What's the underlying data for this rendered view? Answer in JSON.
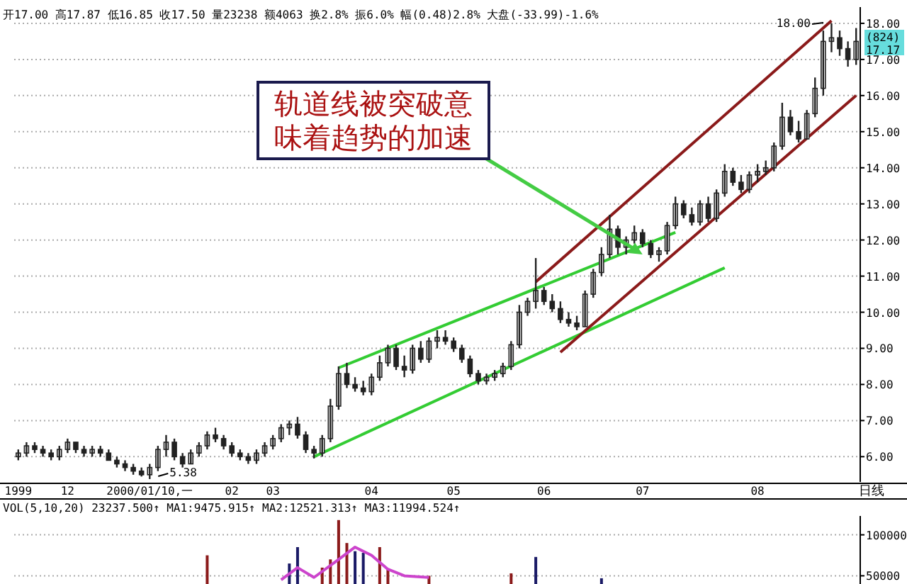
{
  "chart_data": [
    {
      "type": "candlestick",
      "title": "开17.00 高17.87 低16.85 收17.50 量23238 额4063 换2.8% 振6.0% 幅(0.48)2.8% 大盘(-33.99)-1.6%",
      "color": "#222222",
      "categories": [
        "1999",
        null,
        null,
        null,
        null,
        null,
        "12",
        null,
        null,
        null,
        null,
        null,
        null,
        null,
        null,
        null,
        "2000/01/10,一",
        null,
        null,
        null,
        null,
        null,
        null,
        null,
        null,
        null,
        "02",
        null,
        null,
        null,
        null,
        "03",
        null,
        null,
        null,
        null,
        null,
        null,
        null,
        null,
        null,
        null,
        null,
        "04",
        null,
        null,
        null,
        null,
        null,
        null,
        null,
        null,
        null,
        "05",
        null,
        null,
        null,
        null,
        null,
        null,
        null,
        null,
        null,
        null,
        "06",
        null,
        null,
        null,
        null,
        null,
        null,
        null,
        null,
        null,
        null,
        null,
        "07",
        null,
        null,
        null,
        null,
        null,
        null,
        null,
        null,
        null,
        null,
        null,
        null,
        null,
        "08",
        null,
        null,
        null,
        null,
        null,
        null,
        null,
        null,
        null,
        null,
        null,
        null
      ],
      "ohlc": [
        [
          6.0,
          6.2,
          5.9,
          6.1
        ],
        [
          6.1,
          6.4,
          6.0,
          6.3
        ],
        [
          6.3,
          6.4,
          6.1,
          6.2
        ],
        [
          6.2,
          6.3,
          6.0,
          6.1
        ],
        [
          6.1,
          6.2,
          5.9,
          6.0
        ],
        [
          6.0,
          6.3,
          5.9,
          6.2
        ],
        [
          6.2,
          6.5,
          6.1,
          6.4
        ],
        [
          6.4,
          6.4,
          6.1,
          6.2
        ],
        [
          6.2,
          6.3,
          6.0,
          6.1
        ],
        [
          6.1,
          6.3,
          6.0,
          6.2
        ],
        [
          6.2,
          6.3,
          6.0,
          6.1
        ],
        [
          6.1,
          6.2,
          5.9,
          5.9
        ],
        [
          5.9,
          6.0,
          5.7,
          5.8
        ],
        [
          5.8,
          5.9,
          5.6,
          5.7
        ],
        [
          5.7,
          5.8,
          5.5,
          5.6
        ],
        [
          5.6,
          5.7,
          5.45,
          5.5
        ],
        [
          5.5,
          5.8,
          5.38,
          5.7
        ],
        [
          5.7,
          6.3,
          5.6,
          6.2
        ],
        [
          6.2,
          6.6,
          6.0,
          6.4
        ],
        [
          6.4,
          6.5,
          5.9,
          6.0
        ],
        [
          6.0,
          6.1,
          5.7,
          5.8
        ],
        [
          5.8,
          6.2,
          5.8,
          6.1
        ],
        [
          6.1,
          6.4,
          6.0,
          6.3
        ],
        [
          6.3,
          6.7,
          6.2,
          6.6
        ],
        [
          6.6,
          6.8,
          6.4,
          6.5
        ],
        [
          6.5,
          6.6,
          6.2,
          6.3
        ],
        [
          6.3,
          6.4,
          6.0,
          6.1
        ],
        [
          6.1,
          6.2,
          5.9,
          6.0
        ],
        [
          6.0,
          6.1,
          5.8,
          5.9
        ],
        [
          5.9,
          6.2,
          5.8,
          6.1
        ],
        [
          6.1,
          6.4,
          6.0,
          6.3
        ],
        [
          6.3,
          6.6,
          6.2,
          6.5
        ],
        [
          6.5,
          6.9,
          6.4,
          6.8
        ],
        [
          6.8,
          7.0,
          6.6,
          6.9
        ],
        [
          6.9,
          7.1,
          6.5,
          6.6
        ],
        [
          6.6,
          6.7,
          6.1,
          6.2
        ],
        [
          6.2,
          6.3,
          5.95,
          6.1
        ],
        [
          6.1,
          6.6,
          6.0,
          6.5
        ],
        [
          6.5,
          7.6,
          6.4,
          7.4
        ],
        [
          7.4,
          8.5,
          7.3,
          8.3
        ],
        [
          8.3,
          8.6,
          7.9,
          8.0
        ],
        [
          8.0,
          8.2,
          7.8,
          7.9
        ],
        [
          7.9,
          8.1,
          7.7,
          7.8
        ],
        [
          7.8,
          8.3,
          7.7,
          8.2
        ],
        [
          8.2,
          8.8,
          8.1,
          8.6
        ],
        [
          8.6,
          9.1,
          8.5,
          9.0
        ],
        [
          9.0,
          9.1,
          8.4,
          8.5
        ],
        [
          8.5,
          8.8,
          8.2,
          8.4
        ],
        [
          8.4,
          9.1,
          8.3,
          9.0
        ],
        [
          9.0,
          9.2,
          8.6,
          8.7
        ],
        [
          8.7,
          9.3,
          8.6,
          9.2
        ],
        [
          9.2,
          9.5,
          9.0,
          9.3
        ],
        [
          9.3,
          9.5,
          9.1,
          9.2
        ],
        [
          9.2,
          9.3,
          8.9,
          9.0
        ],
        [
          9.0,
          9.1,
          8.6,
          8.7
        ],
        [
          8.7,
          8.8,
          8.2,
          8.3
        ],
        [
          8.3,
          8.4,
          8.0,
          8.1
        ],
        [
          8.1,
          8.3,
          8.0,
          8.2
        ],
        [
          8.2,
          8.4,
          8.1,
          8.3
        ],
        [
          8.3,
          8.6,
          8.2,
          8.5
        ],
        [
          8.5,
          9.2,
          8.4,
          9.1
        ],
        [
          9.1,
          10.2,
          9.0,
          10.0
        ],
        [
          10.0,
          10.4,
          9.9,
          10.3
        ],
        [
          10.3,
          11.5,
          10.1,
          10.6
        ],
        [
          10.6,
          10.7,
          10.2,
          10.3
        ],
        [
          10.3,
          10.5,
          10.0,
          10.1
        ],
        [
          10.1,
          10.3,
          9.7,
          9.8
        ],
        [
          9.8,
          10.0,
          9.6,
          9.7
        ],
        [
          9.7,
          9.9,
          9.5,
          9.6
        ],
        [
          9.6,
          10.6,
          9.6,
          10.5
        ],
        [
          10.5,
          11.2,
          10.4,
          11.1
        ],
        [
          11.1,
          11.8,
          11.0,
          11.6
        ],
        [
          11.6,
          12.7,
          11.5,
          12.3
        ],
        [
          12.3,
          12.4,
          11.6,
          11.8
        ],
        [
          11.8,
          12.1,
          11.6,
          12.0
        ],
        [
          12.0,
          12.4,
          11.9,
          12.2
        ],
        [
          12.2,
          12.3,
          11.8,
          11.9
        ],
        [
          11.9,
          12.0,
          11.5,
          11.6
        ],
        [
          11.6,
          11.8,
          11.4,
          11.7
        ],
        [
          11.7,
          12.5,
          11.6,
          12.4
        ],
        [
          12.4,
          13.2,
          12.3,
          13.0
        ],
        [
          13.0,
          13.1,
          12.6,
          12.7
        ],
        [
          12.7,
          12.9,
          12.4,
          12.5
        ],
        [
          12.5,
          13.1,
          12.4,
          13.0
        ],
        [
          13.0,
          13.2,
          12.5,
          12.6
        ],
        [
          12.6,
          13.4,
          12.5,
          13.3
        ],
        [
          13.3,
          14.1,
          13.2,
          13.9
        ],
        [
          13.9,
          14.0,
          13.5,
          13.6
        ],
        [
          13.6,
          13.8,
          13.3,
          13.4
        ],
        [
          13.4,
          13.9,
          13.3,
          13.8
        ],
        [
          13.8,
          14.1,
          13.6,
          13.9
        ],
        [
          13.9,
          14.2,
          13.8,
          14.0
        ],
        [
          14.0,
          14.7,
          13.9,
          14.6
        ],
        [
          14.6,
          15.8,
          14.5,
          15.4
        ],
        [
          15.4,
          15.6,
          14.9,
          15.0
        ],
        [
          15.0,
          15.3,
          14.7,
          14.8
        ],
        [
          14.8,
          15.6,
          14.8,
          15.5
        ],
        [
          15.5,
          16.5,
          15.4,
          16.2
        ],
        [
          16.2,
          17.8,
          16.0,
          17.5
        ],
        [
          17.5,
          18.0,
          17.2,
          17.6
        ],
        [
          17.6,
          17.8,
          17.1,
          17.3
        ],
        [
          17.3,
          17.5,
          16.8,
          17.0
        ],
        [
          17.0,
          17.87,
          16.85,
          17.5
        ]
      ],
      "series": [
        {
          "type": "line",
          "color": "#33cc33",
          "values": [
            null,
            null,
            null,
            null,
            null,
            null,
            null,
            null,
            null,
            null,
            null,
            null,
            null,
            null,
            null,
            null,
            null,
            null,
            null,
            null,
            null,
            null,
            null,
            null,
            null,
            null,
            null,
            null,
            null,
            null,
            null,
            null,
            null,
            null,
            null,
            null,
            6.0,
            null,
            null,
            null,
            null,
            null,
            null,
            null,
            null,
            null,
            null,
            null,
            null,
            null,
            null,
            null,
            null,
            null,
            null,
            null,
            null,
            null,
            null,
            null,
            null,
            null,
            null,
            null,
            null,
            null,
            null,
            null,
            null,
            null,
            null,
            null,
            null,
            null,
            null,
            null,
            null,
            null,
            null,
            null,
            null,
            null,
            null,
            null,
            null,
            null,
            11.23,
            null,
            null,
            null,
            null,
            null,
            null,
            null,
            null,
            null,
            null,
            null,
            null,
            null,
            null,
            null,
            null
          ]
        },
        {
          "type": "line",
          "color": "#33cc33",
          "values": [
            null,
            null,
            null,
            null,
            null,
            null,
            null,
            null,
            null,
            null,
            null,
            null,
            null,
            null,
            null,
            null,
            null,
            null,
            null,
            null,
            null,
            null,
            null,
            null,
            null,
            null,
            null,
            null,
            null,
            null,
            null,
            null,
            null,
            null,
            null,
            null,
            null,
            null,
            null,
            8.46,
            null,
            null,
            null,
            null,
            null,
            null,
            null,
            null,
            null,
            null,
            null,
            null,
            null,
            null,
            null,
            null,
            null,
            null,
            null,
            null,
            null,
            null,
            null,
            null,
            null,
            null,
            null,
            null,
            null,
            null,
            null,
            null,
            null,
            null,
            null,
            null,
            null,
            null,
            null,
            null,
            12.21,
            null,
            null,
            null,
            null,
            null,
            null,
            null,
            null,
            null,
            null,
            null,
            null,
            null,
            null,
            null,
            null,
            null,
            null,
            null,
            null,
            null,
            null
          ]
        },
        {
          "type": "line",
          "color": "#8b1a1a",
          "values": [
            null,
            null,
            null,
            null,
            null,
            null,
            null,
            null,
            null,
            null,
            null,
            null,
            null,
            null,
            null,
            null,
            null,
            null,
            null,
            null,
            null,
            null,
            null,
            null,
            null,
            null,
            null,
            null,
            null,
            null,
            null,
            null,
            null,
            null,
            null,
            null,
            null,
            null,
            null,
            null,
            null,
            null,
            null,
            null,
            null,
            null,
            null,
            null,
            null,
            null,
            null,
            null,
            null,
            null,
            null,
            null,
            null,
            null,
            null,
            null,
            null,
            null,
            null,
            10.84,
            null,
            null,
            null,
            null,
            null,
            null,
            null,
            null,
            null,
            null,
            null,
            null,
            null,
            null,
            null,
            null,
            null,
            null,
            null,
            null,
            null,
            null,
            null,
            null,
            null,
            null,
            null,
            null,
            null,
            null,
            null,
            null,
            null,
            null,
            null,
            18.07,
            null,
            null,
            null
          ]
        },
        {
          "type": "line",
          "color": "#8b1a1a",
          "values": [
            null,
            null,
            null,
            null,
            null,
            null,
            null,
            null,
            null,
            null,
            null,
            null,
            null,
            null,
            null,
            null,
            null,
            null,
            null,
            null,
            null,
            null,
            null,
            null,
            null,
            null,
            null,
            null,
            null,
            null,
            null,
            null,
            null,
            null,
            null,
            null,
            null,
            null,
            null,
            null,
            null,
            null,
            null,
            null,
            null,
            null,
            null,
            null,
            null,
            null,
            null,
            null,
            null,
            null,
            null,
            null,
            null,
            null,
            null,
            null,
            null,
            null,
            null,
            null,
            null,
            null,
            8.89,
            null,
            null,
            null,
            null,
            null,
            null,
            null,
            null,
            null,
            null,
            null,
            null,
            null,
            null,
            null,
            null,
            null,
            null,
            null,
            null,
            null,
            null,
            null,
            null,
            null,
            null,
            null,
            null,
            null,
            null,
            null,
            null,
            null,
            null,
            null,
            16.0
          ]
        }
      ],
      "ylim": [
        5.3,
        18.45
      ],
      "yticks": [
        {
          "value": 6,
          "label": "6.00"
        },
        {
          "value": 7,
          "label": "7.00"
        },
        {
          "value": 8,
          "label": "8.00"
        },
        {
          "value": 9,
          "label": "9.00"
        },
        {
          "value": 10,
          "label": "10.00"
        },
        {
          "value": 11,
          "label": "11.00"
        },
        {
          "value": 12,
          "label": "12.00"
        },
        {
          "value": 13,
          "label": "13.00"
        },
        {
          "value": 14,
          "label": "14.00"
        },
        {
          "value": 15,
          "label": "15.00"
        },
        {
          "value": 16,
          "label": "16.00"
        },
        {
          "value": 17,
          "label": "17.00"
        },
        {
          "value": 18,
          "label": "18.00"
        }
      ],
      "grid": "y",
      "annotations": [
        {
          "text": "轨道线被突破意味着趋势的加速",
          "x": "07",
          "y": 11.6
        },
        "18.00",
        {
          "text": "5.38",
          "x": "2000/01/10,一",
          "y": 5.38
        },
        "(824)",
        "17.17",
        "日线"
      ]
    },
    {
      "type": "bar",
      "title": "VOL(5,10,20) 23237.500↑ MA1:9475.915↑ MA2:12521.313↑ MA3:11994.524↑",
      "categories": [
        null,
        null,
        null,
        null,
        null,
        null,
        null,
        null,
        null,
        null,
        null,
        null,
        null,
        null,
        null,
        null,
        null,
        null,
        null,
        null,
        null,
        null,
        null,
        null,
        null,
        null,
        null,
        null,
        null,
        null,
        null,
        null,
        null,
        null,
        null,
        null,
        null,
        null,
        null,
        null,
        null,
        null,
        null,
        null,
        null,
        null,
        null,
        null,
        null,
        null,
        null,
        null,
        null,
        null,
        null,
        null,
        null,
        null,
        null,
        null,
        null,
        null,
        null,
        null,
        null,
        null,
        null,
        null,
        null,
        null,
        null,
        null,
        null,
        null,
        null,
        null,
        null,
        null,
        null,
        null,
        null,
        null,
        null,
        null,
        null,
        null,
        null,
        null,
        null,
        null,
        null,
        null,
        null,
        null,
        null,
        null,
        null,
        null,
        null,
        null,
        null,
        null,
        null
      ],
      "series": [
        {
          "type": "bar",
          "values": [
            null,
            null,
            null,
            null,
            null,
            null,
            null,
            null,
            null,
            null,
            null,
            null,
            null,
            null,
            null,
            null,
            null,
            null,
            null,
            null,
            null,
            null,
            null,
            75000,
            null,
            null,
            null,
            null,
            null,
            null,
            null,
            null,
            null,
            65000,
            85000,
            null,
            null,
            60000,
            70000,
            118000,
            90000,
            80000,
            78000,
            null,
            85000,
            58000,
            null,
            null,
            null,
            null,
            50000,
            null,
            null,
            null,
            null,
            null,
            null,
            null,
            null,
            null,
            53000,
            null,
            null,
            73000,
            null,
            null,
            null,
            null,
            null,
            null,
            null,
            47000,
            null,
            null,
            null,
            null,
            null,
            null,
            null,
            null,
            null,
            null,
            null,
            null,
            null,
            null,
            null,
            null,
            null,
            null,
            null,
            null,
            null,
            null,
            null,
            null,
            null,
            null,
            null,
            null,
            null,
            null,
            null
          ],
          "colors": [
            null,
            null,
            null,
            null,
            null,
            null,
            null,
            null,
            null,
            null,
            null,
            null,
            null,
            null,
            null,
            null,
            null,
            null,
            null,
            null,
            null,
            null,
            null,
            "#8b1a1a",
            null,
            null,
            null,
            null,
            null,
            null,
            null,
            null,
            null,
            "#1a1a66",
            "#1a1a66",
            null,
            null,
            "#8b1a1a",
            "#8b1a1a",
            "#8b1a1a",
            "#8b1a1a",
            "#1a1a66",
            "#1a1a66",
            null,
            "#8b1a1a",
            "#8b1a1a",
            null,
            null,
            null,
            null,
            "#8b1a1a",
            null,
            null,
            null,
            null,
            null,
            null,
            null,
            null,
            null,
            "#8b1a1a",
            null,
            null,
            "#1a1a66",
            null,
            null,
            null,
            null,
            null,
            null,
            null,
            "#1a1a66",
            null,
            null,
            null,
            null,
            null,
            null,
            null,
            null,
            null,
            null,
            null,
            null,
            null,
            null,
            null,
            null,
            null,
            null,
            null,
            null,
            null,
            null,
            null,
            null,
            null,
            null,
            null,
            null,
            null,
            null,
            null
          ]
        },
        {
          "type": "line",
          "color": "#cc44cc",
          "values": [
            null,
            null,
            null,
            null,
            null,
            null,
            null,
            null,
            null,
            null,
            null,
            null,
            null,
            null,
            null,
            null,
            null,
            null,
            null,
            null,
            null,
            null,
            null,
            null,
            null,
            null,
            null,
            null,
            null,
            null,
            null,
            null,
            45000,
            null,
            60000,
            null,
            48000,
            null,
            null,
            70000,
            null,
            85000,
            null,
            75000,
            null,
            58000,
            null,
            50000,
            null,
            null,
            48000,
            null,
            null,
            null,
            null,
            null,
            null,
            null,
            null,
            null,
            null,
            null,
            null,
            null,
            null,
            null,
            null,
            null,
            null,
            null,
            null,
            null,
            null,
            null,
            null,
            null,
            null,
            null,
            null,
            null,
            null,
            null,
            null,
            null,
            null,
            null,
            null,
            null,
            null,
            null,
            null,
            null,
            null,
            null,
            null,
            null,
            null,
            null,
            null,
            null,
            null,
            null,
            null
          ]
        }
      ],
      "ylim": [
        40000,
        123000
      ],
      "yticks": [
        50000,
        100000
      ],
      "grid": "y",
      "tick_labels": "y"
    }
  ]
}
